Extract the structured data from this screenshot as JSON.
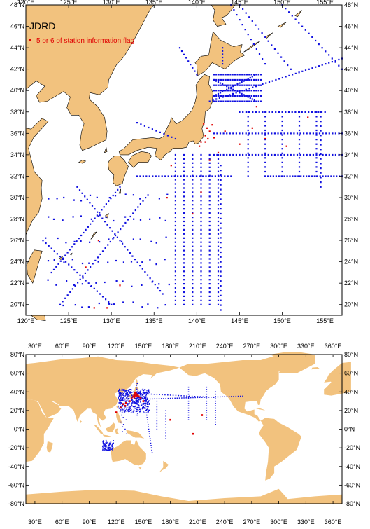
{
  "colors": {
    "land": "#f2c27e",
    "sea": "#ffffff",
    "station": "#1010e0",
    "flag": "#e00000",
    "frame": "#000000"
  },
  "top_map": {
    "title": "JDRD",
    "legend_label": "5 or 6 of station information flag",
    "lon_range": [
      120,
      157
    ],
    "lat_range": [
      19,
      48
    ],
    "lon_ticks": [
      "120°E",
      "125°E",
      "130°E",
      "135°E",
      "140°E",
      "145°E",
      "150°E",
      "155°E"
    ],
    "lon_values": [
      120,
      125,
      130,
      135,
      140,
      145,
      150,
      155
    ],
    "lat_ticks": [
      "20°N",
      "22°N",
      "24°N",
      "26°N",
      "28°N",
      "30°N",
      "32°N",
      "34°N",
      "36°N",
      "38°N",
      "40°N",
      "42°N",
      "44°N",
      "46°N",
      "48°N"
    ],
    "lat_values": [
      20,
      22,
      24,
      26,
      28,
      30,
      32,
      34,
      36,
      38,
      40,
      42,
      44,
      46,
      48
    ]
  },
  "bottom_map": {
    "lon_range": [
      20,
      370
    ],
    "lat_range": [
      -80,
      80
    ],
    "lon_ticks": [
      "30°E",
      "60°E",
      "90°E",
      "120°E",
      "150°E",
      "180°E",
      "210°E",
      "240°E",
      "270°E",
      "300°E",
      "330°E",
      "360°E"
    ],
    "lon_values": [
      30,
      60,
      90,
      120,
      150,
      180,
      210,
      240,
      270,
      300,
      330,
      360
    ],
    "lat_ticks": [
      "80°N",
      "60°N",
      "40°N",
      "20°N",
      "0°N",
      "-20°N",
      "-40°N",
      "-60°N",
      "-80°N"
    ],
    "lat_values": [
      80,
      60,
      40,
      20,
      0,
      -20,
      -40,
      -60,
      -80
    ]
  }
}
